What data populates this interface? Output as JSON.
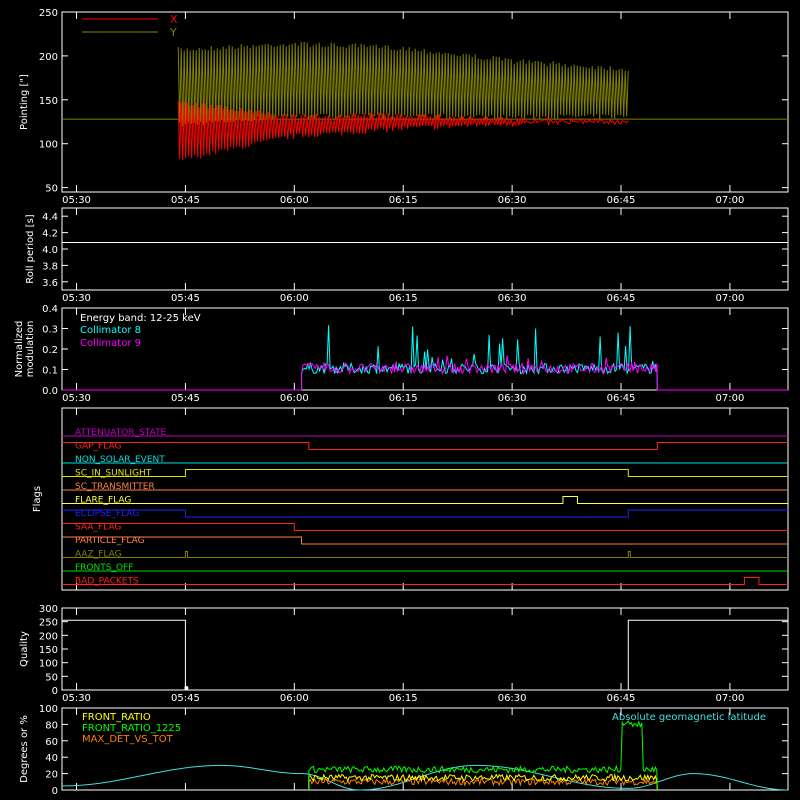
{
  "chart_data": [
    {
      "type": "line",
      "ylabel": "Pointing [\"]",
      "ylim": [
        45,
        250
      ],
      "yticks": [
        50,
        100,
        150,
        200,
        250
      ],
      "x_ticks": [
        "05:30",
        "05:45",
        "06:00",
        "06:15",
        "06:30",
        "06:45",
        "07:00"
      ],
      "x_range": [
        "05:28",
        "07:08"
      ],
      "legend": [
        "X",
        "Y"
      ],
      "series": [
        {
          "name": "X",
          "color": "#ff0000",
          "segments": [
            {
              "t": [
                "05:44",
                "06:46"
              ],
              "type": "oscillation",
              "lower": [
                78,
                105,
                114,
                120,
                122
              ],
              "upper": [
                150,
                134,
                136,
                130,
                128
              ]
            }
          ]
        },
        {
          "name": "Y",
          "color": "#808000",
          "segments": [
            {
              "t": [
                "05:44",
                "06:46"
              ],
              "type": "oscillation",
              "lower": [
                118,
                128,
                128,
                127,
                128
              ],
              "upper": [
                210,
                217,
                212,
                197,
                188
              ]
            }
          ]
        }
      ],
      "reference_line": {
        "value": 128,
        "color": "#808000"
      }
    },
    {
      "type": "line",
      "ylabel": "Roll period [s]",
      "ylim": [
        3.5,
        4.5
      ],
      "yticks": [
        3.6,
        3.8,
        4.0,
        4.2,
        4.4
      ],
      "x_ticks": [
        "05:30",
        "05:45",
        "06:00",
        "06:15",
        "06:30",
        "06:45",
        "07:00"
      ],
      "series": [
        {
          "color": "#ffffff",
          "value": 4.08
        }
      ]
    },
    {
      "type": "line",
      "ylabel": [
        "Normalized",
        "modulation"
      ],
      "ylim": [
        0,
        0.4
      ],
      "yticks": [
        0.0,
        0.1,
        0.2,
        0.3,
        0.4
      ],
      "x_ticks": [
        "05:30",
        "05:45",
        "06:00",
        "06:15",
        "06:30",
        "06:45",
        "07:00"
      ],
      "annotation": "Energy band: 12-25 keV",
      "series": [
        {
          "name": "Collimator 8",
          "color": "#00ffff",
          "active": [
            "06:01",
            "06:50"
          ],
          "base": 0.1,
          "peaks": [
            0.32,
            0.26,
            0.25
          ]
        },
        {
          "name": "Collimator 9",
          "color": "#ff00ff",
          "active": [
            "06:01",
            "06:50"
          ],
          "base": 0.1,
          "peaks": [
            0.2,
            0.19,
            0.18
          ]
        }
      ]
    },
    {
      "type": "line",
      "ylabel": "Flags",
      "flags": [
        {
          "name": "ATTENUATOR_STATE",
          "color": "#c000c0",
          "steps": [
            [
              "05:28",
              0
            ]
          ]
        },
        {
          "name": "GAP_FLAG",
          "color": "#ff2020",
          "steps": [
            [
              "05:28",
              1
            ],
            [
              "06:02",
              0
            ],
            [
              "06:50",
              1
            ]
          ]
        },
        {
          "name": "NON_SOLAR_EVENT",
          "color": "#00e0e0",
          "steps": [
            [
              "05:28",
              0
            ]
          ]
        },
        {
          "name": "SC_IN_SUNLIGHT",
          "color": "#e0e000",
          "steps": [
            [
              "05:28",
              0
            ],
            [
              "05:45",
              1
            ],
            [
              "06:46",
              0
            ]
          ]
        },
        {
          "name": "SC_TRANSMITTER",
          "color": "#ff8040",
          "steps": [
            [
              "05:28",
              0
            ]
          ]
        },
        {
          "name": "FLARE_FLAG",
          "color": "#ffff40",
          "steps": [
            [
              "05:28",
              0
            ],
            [
              "06:37",
              1
            ],
            [
              "06:39",
              0
            ]
          ]
        },
        {
          "name": "ECLIPSE_FLAG",
          "color": "#2020ff",
          "steps": [
            [
              "05:28",
              1
            ],
            [
              "05:45",
              0
            ],
            [
              "06:46",
              1
            ]
          ]
        },
        {
          "name": "SAA_FLAG",
          "color": "#ff2020",
          "steps": [
            [
              "05:28",
              1
            ],
            [
              "06:00",
              0
            ]
          ]
        },
        {
          "name": "PARTICLE_FLAG",
          "color": "#ff8040",
          "steps": [
            [
              "05:28",
              1
            ],
            [
              "06:01",
              0
            ]
          ]
        },
        {
          "name": "AAZ_FLAG",
          "color": "#808000",
          "pulses": [
            "05:45",
            "06:46"
          ]
        },
        {
          "name": "FRONTS_OFF",
          "color": "#00e000",
          "steps": [
            [
              "05:28",
              0
            ]
          ]
        },
        {
          "name": "BAD_PACKETS",
          "color": "#ff2020",
          "steps": [
            [
              "05:28",
              0
            ],
            [
              "07:02",
              1
            ],
            [
              "07:04",
              0
            ]
          ]
        }
      ]
    },
    {
      "type": "line",
      "ylabel": "Quality",
      "ylim": [
        0,
        300
      ],
      "yticks": [
        0,
        50,
        100,
        150,
        200,
        250,
        300
      ],
      "x_ticks": [
        "05:30",
        "05:45",
        "06:00",
        "06:15",
        "06:30",
        "06:45",
        "07:00"
      ],
      "series": [
        {
          "color": "#ffffff",
          "segments": [
            {
              "t": [
                "05:28",
                "05:45"
              ],
              "value": 255
            },
            {
              "t": [
                "05:45",
                "06:46"
              ],
              "value": 0
            },
            {
              "t": [
                "06:46",
                "07:08"
              ],
              "value": 255
            }
          ]
        }
      ]
    },
    {
      "type": "line",
      "ylabel": "Degrees or %",
      "ylim": [
        0,
        100
      ],
      "yticks": [
        0,
        20,
        40,
        60,
        80,
        100
      ],
      "legend": [
        "FRONT_RATIO",
        "FRONT_RATIO_1225",
        "MAX_DET_VS_TOT",
        "Absolute geomagnetic latitude"
      ],
      "series": [
        {
          "name": "FRONT_RATIO",
          "color": "#ffff00",
          "active": [
            "06:02",
            "06:50"
          ],
          "level": 15
        },
        {
          "name": "FRONT_RATIO_1225",
          "color": "#00ff00",
          "active": [
            "06:02",
            "06:50"
          ],
          "level": 25,
          "peak": {
            "t": [
              "06:45",
              "06:48"
            ],
            "value": 80
          }
        },
        {
          "name": "MAX_DET_VS_TOT",
          "color": "#ff8000",
          "active": [
            "06:02",
            "06:50"
          ],
          "level": 10
        },
        {
          "name": "Absolute geomagnetic latitude",
          "color": "#40e0e0",
          "points": [
            [
              "05:28",
              5
            ],
            [
              "05:50",
              30
            ],
            [
              "06:01",
              20
            ],
            [
              "06:09",
              0
            ],
            [
              "06:25",
              30
            ],
            [
              "06:46",
              2
            ],
            [
              "06:55",
              20
            ],
            [
              "07:08",
              0
            ]
          ]
        }
      ]
    }
  ]
}
